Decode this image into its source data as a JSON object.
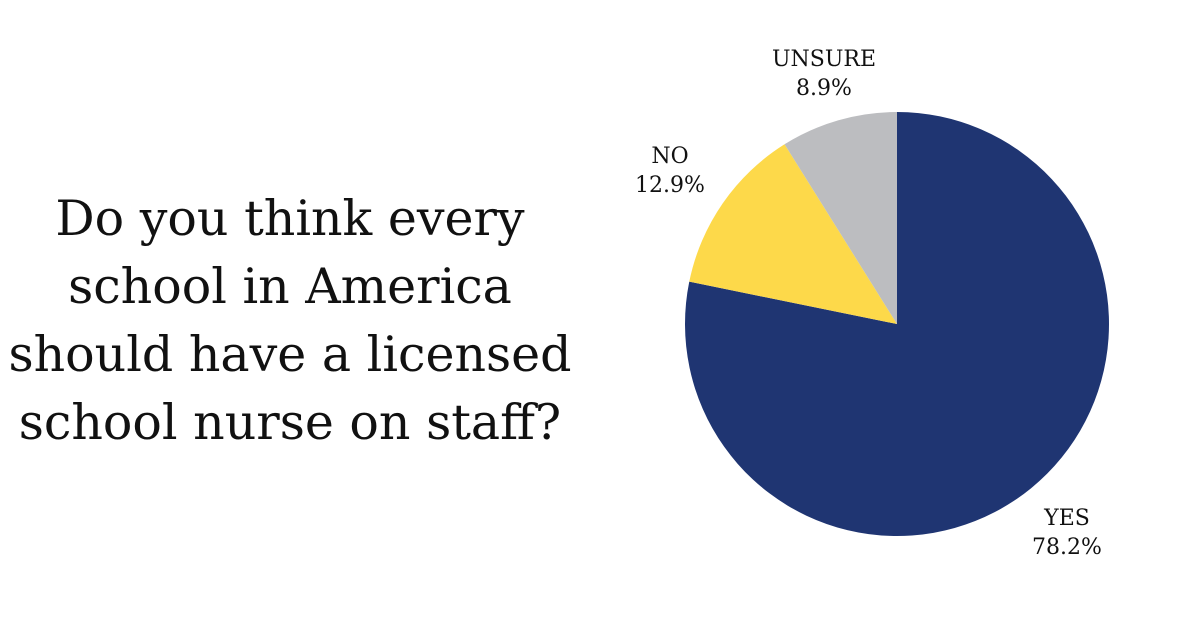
{
  "question": {
    "lines": [
      "Do you think every",
      "school in America",
      "should have a licensed",
      "school nurse on staff?"
    ]
  },
  "chart_data": {
    "type": "pie",
    "title": "",
    "categories": [
      "YES",
      "NO",
      "UNSURE"
    ],
    "values": [
      78.2,
      12.9,
      8.9
    ],
    "value_labels": [
      "78.2%",
      "12.9%",
      "8.9%"
    ],
    "colors": [
      "#1f3572",
      "#fdd94a",
      "#bcbdc0"
    ],
    "start": "12 o'clock, clockwise"
  }
}
